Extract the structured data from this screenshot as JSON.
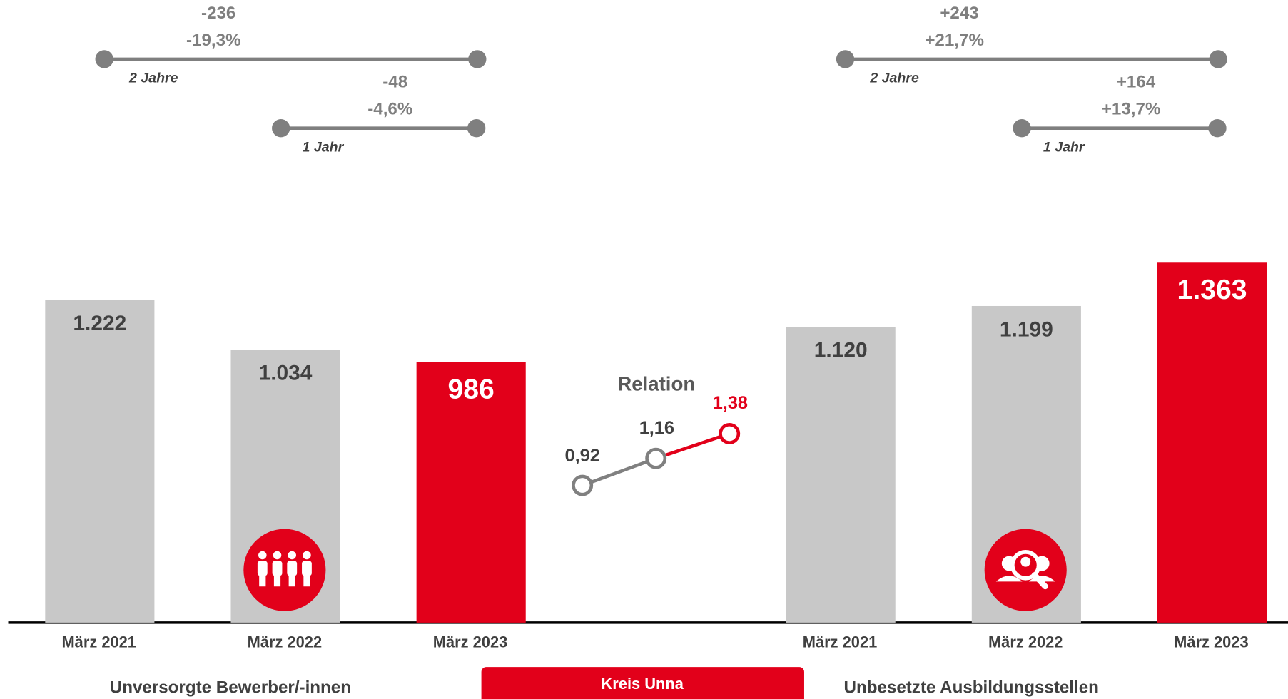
{
  "chart_data": [
    {
      "type": "bar",
      "title": "Unversorgte Bewerber/-innen",
      "categories": [
        "März 2021",
        "März 2022",
        "März 2023"
      ],
      "values": [
        1222,
        1034,
        986
      ],
      "value_labels": [
        "1.222",
        "1.034",
        "986"
      ],
      "colors": [
        "#c8c8c8",
        "#c8c8c8",
        "#e2001a"
      ],
      "annotations": [
        {
          "change": "-236",
          "percent": "-19,3%",
          "period": "2 Jahre"
        },
        {
          "change": "-48",
          "percent": "-4,6%",
          "period": "1 Jahr"
        }
      ]
    },
    {
      "type": "line",
      "title": "Relation",
      "values": [
        0.92,
        1.16,
        1.38
      ],
      "value_labels": [
        "0,92",
        "1,16",
        "1,38"
      ],
      "colors": [
        "#808080",
        "#808080",
        "#e2001a"
      ]
    },
    {
      "type": "bar",
      "title": "Unbesetzte Ausbildungsstellen",
      "categories": [
        "März 2021",
        "März 2022",
        "März 2023"
      ],
      "values": [
        1120,
        1199,
        1363
      ],
      "value_labels": [
        "1.120",
        "1.199",
        "1.363"
      ],
      "colors": [
        "#c8c8c8",
        "#c8c8c8",
        "#e2001a"
      ],
      "annotations": [
        {
          "change": "+243",
          "percent": "+21,7%",
          "period": "2 Jahre"
        },
        {
          "change": "+164",
          "percent": "+13,7%",
          "period": "1 Jahr"
        }
      ]
    }
  ],
  "footer": "Kreis Unna"
}
